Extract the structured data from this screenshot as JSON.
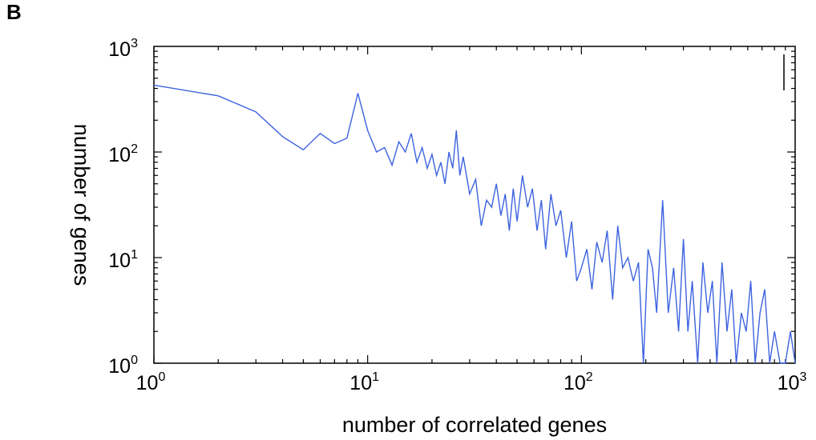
{
  "panel_label": "B",
  "chart_data": {
    "type": "line",
    "title": "",
    "xlabel": "number of correlated genes",
    "ylabel": "number of genes",
    "xscale": "log",
    "yscale": "log",
    "xlim": [
      1,
      1000
    ],
    "ylim": [
      1,
      1000
    ],
    "grid": false,
    "legend": "none",
    "x_ticks": [
      {
        "value": 1,
        "base": "10",
        "exp": "0"
      },
      {
        "value": 10,
        "base": "10",
        "exp": "1"
      },
      {
        "value": 100,
        "base": "10",
        "exp": "2"
      },
      {
        "value": 1000,
        "base": "10",
        "exp": "3"
      }
    ],
    "y_ticks": [
      {
        "value": 1,
        "base": "10",
        "exp": "0"
      },
      {
        "value": 10,
        "base": "10",
        "exp": "1"
      },
      {
        "value": 100,
        "base": "10",
        "exp": "2"
      },
      {
        "value": 1000,
        "base": "10",
        "exp": "3"
      }
    ],
    "line_color": "#3d63e0",
    "series": [
      {
        "x": [
          1,
          2,
          3,
          4,
          5,
          6,
          7,
          8,
          9,
          10,
          11,
          12,
          13,
          14,
          15,
          16,
          17,
          18,
          19,
          20,
          21,
          22,
          23,
          24,
          25,
          26,
          27,
          28,
          30,
          32,
          34,
          36,
          38,
          40,
          42,
          44,
          46,
          48,
          50,
          53,
          56,
          59,
          62,
          65,
          68,
          72,
          76,
          80,
          85,
          90,
          95,
          100,
          106,
          112,
          118,
          125,
          132,
          140,
          148,
          156,
          165,
          175,
          185,
          195,
          205,
          215,
          225,
          240,
          255,
          270,
          285,
          300,
          315,
          330,
          350,
          370,
          390,
          410,
          430,
          455,
          480,
          505,
          530,
          560,
          590,
          620,
          650,
          685,
          720,
          760,
          800,
          850,
          900,
          950,
          1000
        ],
        "y": [
          430,
          340,
          240,
          140,
          105,
          150,
          120,
          135,
          360,
          160,
          100,
          110,
          75,
          125,
          100,
          150,
          80,
          110,
          70,
          95,
          60,
          80,
          50,
          100,
          70,
          160,
          60,
          90,
          40,
          55,
          20,
          35,
          30,
          50,
          25,
          40,
          18,
          45,
          22,
          60,
          30,
          45,
          18,
          35,
          12,
          40,
          20,
          28,
          10,
          22,
          6,
          8,
          12,
          5,
          14,
          9,
          18,
          4,
          20,
          8,
          10,
          6,
          9,
          1,
          12,
          8,
          3,
          35,
          3,
          8,
          2,
          15,
          2,
          6,
          1,
          9,
          3,
          6,
          1,
          9,
          2,
          5,
          1,
          3,
          2,
          6,
          1,
          3,
          5,
          1,
          2,
          1,
          1,
          2,
          1
        ]
      }
    ]
  }
}
